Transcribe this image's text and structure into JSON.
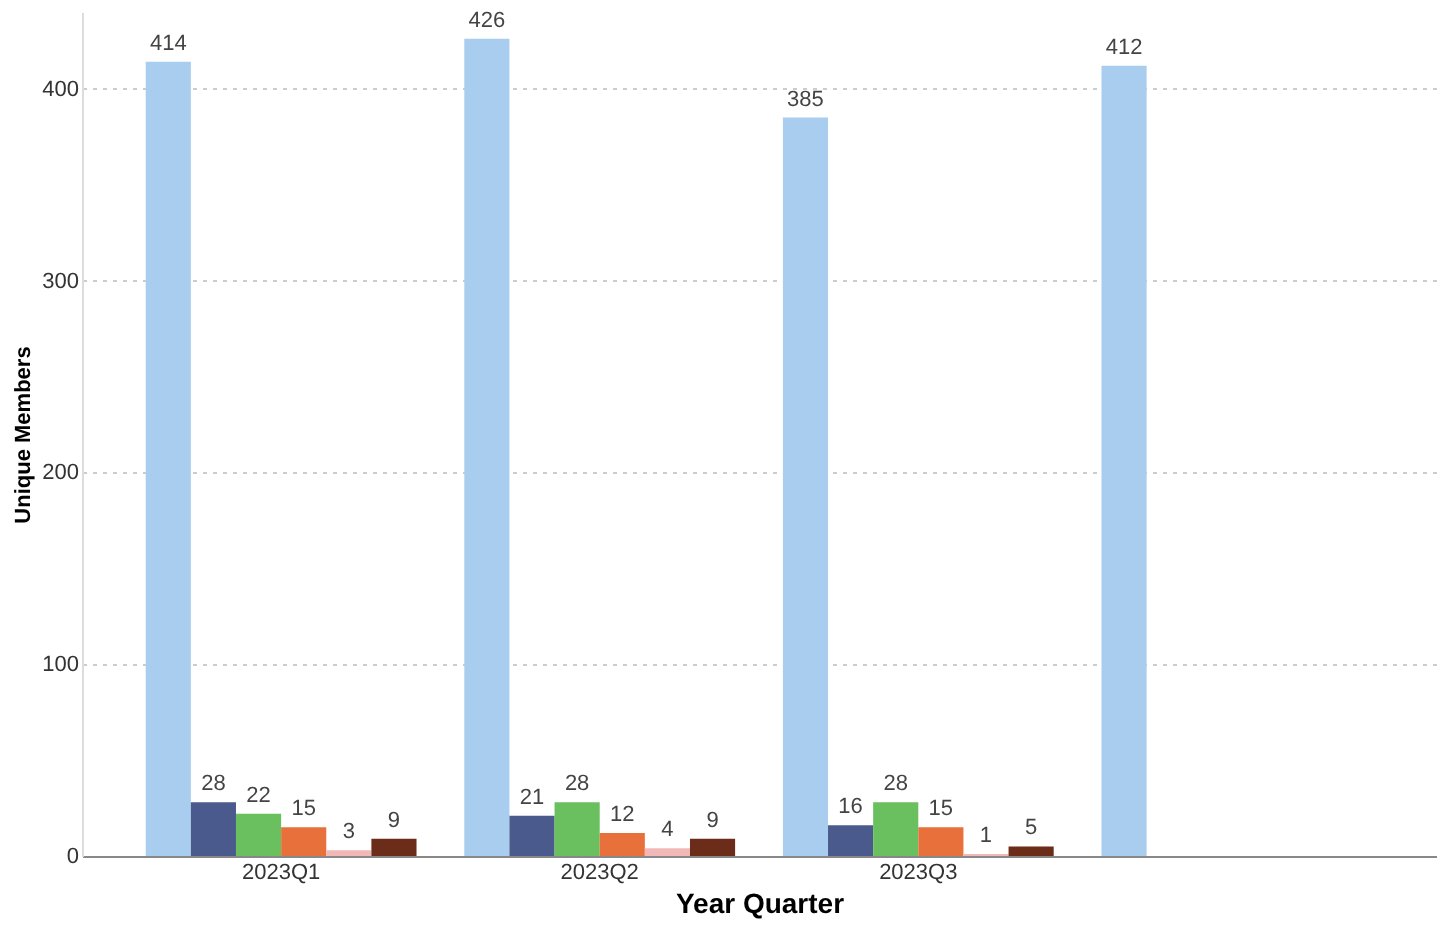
{
  "chart_data": {
    "type": "bar",
    "xlabel": "Year Quarter",
    "ylabel": "Unique Members",
    "categories": [
      "2023Q1",
      "2023Q2",
      "2023Q3",
      null
    ],
    "series": [
      {
        "color": "#a9cdee",
        "values": [
          414,
          426,
          385,
          412
        ]
      },
      {
        "color": "#4a5a8c",
        "values": [
          28,
          21,
          16,
          null
        ]
      },
      {
        "color": "#6abf5e",
        "values": [
          22,
          28,
          28,
          null
        ]
      },
      {
        "color": "#e8703a",
        "values": [
          15,
          12,
          15,
          null
        ]
      },
      {
        "color": "#f2b8b8",
        "values": [
          3,
          4,
          1,
          null
        ]
      },
      {
        "color": "#6b2d1a",
        "values": [
          9,
          9,
          5,
          null
        ]
      }
    ],
    "ylim": [
      0,
      440
    ],
    "yticks": [
      0,
      100,
      200,
      300,
      400
    ],
    "grid": "y",
    "data_labels": true,
    "legend": false
  }
}
